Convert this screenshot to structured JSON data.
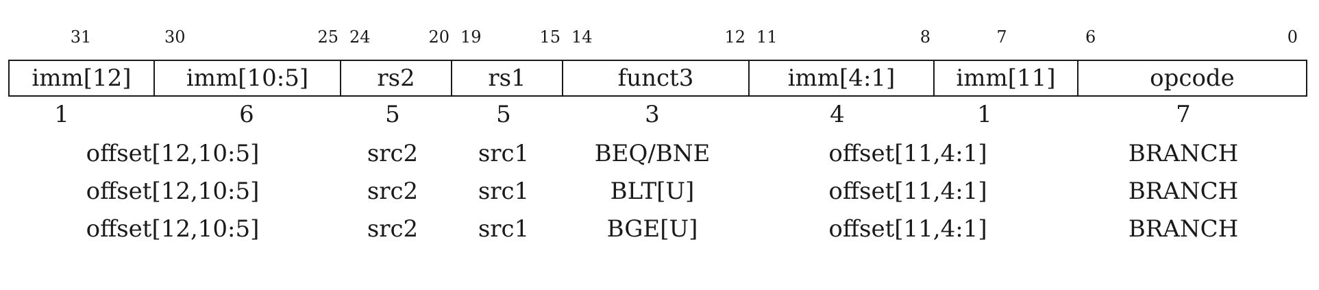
{
  "bit_positions": {
    "b31": "31",
    "b30": "30",
    "b25": "25",
    "b24": "24",
    "b20": "20",
    "b19": "19",
    "b15": "15",
    "b14": "14",
    "b12": "12",
    "b11": "11",
    "b8": "8",
    "b7": "7",
    "b6": "6",
    "b0": "0"
  },
  "fields": [
    {
      "label": "imm[12]",
      "width": "1"
    },
    {
      "label": "imm[10:5]",
      "width": "6"
    },
    {
      "label": "rs2",
      "width": "5"
    },
    {
      "label": "rs1",
      "width": "5"
    },
    {
      "label": "funct3",
      "width": "3"
    },
    {
      "label": "imm[4:1]",
      "width": "4"
    },
    {
      "label": "imm[11]",
      "width": "1"
    },
    {
      "label": "opcode",
      "width": "7"
    }
  ],
  "rows": [
    {
      "offset_hi": "offset[12,10:5]",
      "src2": "src2",
      "src1": "src1",
      "funct3": "BEQ/BNE",
      "offset_lo": "offset[11,4:1]",
      "opcode": "BRANCH"
    },
    {
      "offset_hi": "offset[12,10:5]",
      "src2": "src2",
      "src1": "src1",
      "funct3": "BLT[U]",
      "offset_lo": "offset[11,4:1]",
      "opcode": "BRANCH"
    },
    {
      "offset_hi": "offset[12,10:5]",
      "src2": "src2",
      "src1": "src1",
      "funct3": "BGE[U]",
      "offset_lo": "offset[11,4:1]",
      "opcode": "BRANCH"
    }
  ]
}
